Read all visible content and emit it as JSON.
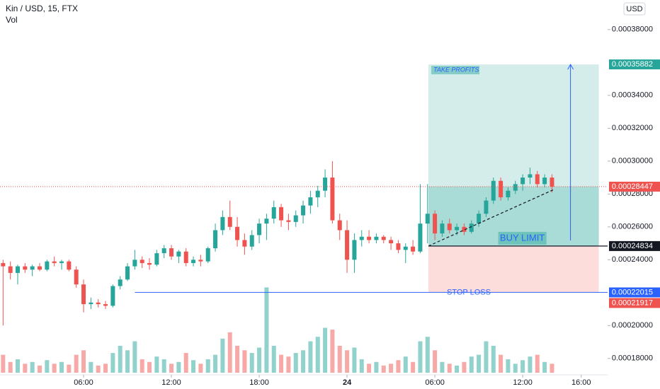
{
  "chart_data": {
    "type": "candlestick",
    "title": "Kin / USD, 15, FTX",
    "volume_label": "Vol",
    "currency": "USD",
    "up_color": "#26a69a",
    "down_color": "#ef5350",
    "xlim": [
      0.29,
      41.8
    ],
    "xticks": [
      {
        "value": 6,
        "label": "06:00"
      },
      {
        "value": 12,
        "label": "12:00"
      },
      {
        "value": 18,
        "label": "18:00"
      },
      24,
      {
        "value": 30,
        "label": "06:00"
      },
      {
        "value": 36,
        "label": "12:00"
      },
      {
        "value": 40,
        "label": "16:00"
      }
    ],
    "ylim": [
      0.00017,
      0.000398
    ],
    "yticks": [
      {
        "value": 0.00018,
        "label": "0.00018000"
      },
      {
        "value": 0.0002,
        "label": "0.00020000"
      },
      {
        "value": 0.00024,
        "label": "0.00024000"
      },
      {
        "value": 0.00026,
        "label": "0.00026000"
      },
      {
        "value": 0.00028,
        "label": "0.00028000"
      },
      {
        "value": 0.0003,
        "label": "0.00030000"
      },
      {
        "value": 0.00032,
        "label": "0.00032000"
      },
      {
        "value": 0.00034,
        "label": "0.00034000"
      },
      {
        "value": 0.00038,
        "label": "0.00038000"
      }
    ],
    "vlim": [
      0,
      100
    ],
    "x": [
      0.5,
      1,
      1.5,
      2,
      2.5,
      3,
      3.5,
      4,
      4.5,
      5,
      5.5,
      6,
      6.5,
      7,
      7.5,
      8,
      8.5,
      9,
      9.5,
      10,
      10.5,
      11,
      11.5,
      12,
      12.5,
      13,
      13.5,
      14,
      14.5,
      15,
      15.5,
      16,
      16.5,
      17,
      17.5,
      18,
      18.5,
      19,
      19.5,
      20,
      20.5,
      21,
      21.5,
      22,
      22.5,
      23,
      23.5,
      24,
      24.5,
      25,
      25.5,
      26,
      26.5,
      27,
      27.5,
      28,
      28.5,
      29,
      29.5,
      30,
      30.5,
      31,
      31.5,
      32,
      32.5,
      33,
      33.5,
      34,
      34.5,
      35,
      35.5,
      36,
      36.5,
      37,
      37.5,
      38
    ],
    "open": [
      0.000238,
      0.000236,
      0.000232,
      0.000236,
      0.000234,
      0.000236,
      0.000234,
      0.000239,
      0.000238,
      0.000239,
      0.000234,
      0.000225,
      0.000213,
      0.000214,
      0.000213,
      0.000212,
      0.000224,
      0.000228,
      0.000236,
      0.00024,
      0.000238,
      0.000237,
      0.000244,
      0.000247,
      0.000242,
      0.000245,
      0.000238,
      0.00024,
      0.000239,
      0.000247,
      0.000258,
      0.000266,
      0.00026,
      0.000252,
      0.000248,
      0.000255,
      0.000262,
      0.000265,
      0.000272,
      0.000264,
      0.000263,
      0.000267,
      0.000273,
      0.000278,
      0.000282,
      0.00029,
      0.000264,
      0.000258,
      0.00024,
      0.000252,
      0.000254,
      0.000252,
      0.000254,
      0.000252,
      0.00025,
      0.000246,
      0.000248,
      0.000245,
      0.000262,
      0.000268,
      0.000256,
      0.000262,
      0.000258,
      0.00026,
      0.000257,
      0.000262,
      0.000268,
      0.000276,
      0.000288,
      0.000278,
      0.000282,
      0.000286,
      0.00029,
      0.000292,
      0.000286,
      0.00029
    ],
    "high": [
      0.00024,
      0.000239,
      0.000237,
      0.000238,
      0.000237,
      0.000238,
      0.00024,
      0.000242,
      0.00024,
      0.00024,
      0.000236,
      0.000228,
      0.000217,
      0.000216,
      0.000215,
      0.000225,
      0.00023,
      0.000238,
      0.000246,
      0.000242,
      0.000241,
      0.000246,
      0.000249,
      0.000249,
      0.000246,
      0.000247,
      0.000242,
      0.000243,
      0.000248,
      0.000262,
      0.00027,
      0.000276,
      0.000266,
      0.000256,
      0.000258,
      0.000265,
      0.000268,
      0.000276,
      0.000274,
      0.000268,
      0.00027,
      0.000276,
      0.000282,
      0.000285,
      0.000295,
      0.0003,
      0.000268,
      0.000264,
      0.000256,
      0.000258,
      0.000258,
      0.000256,
      0.000255,
      0.000254,
      0.000252,
      0.00025,
      0.000252,
      0.000286,
      0.000286,
      0.00027,
      0.000264,
      0.000265,
      0.000262,
      0.000262,
      0.000264,
      0.00027,
      0.000278,
      0.00029,
      0.00029,
      0.000284,
      0.000288,
      0.000292,
      0.000296,
      0.000294,
      0.000292,
      0.000292
    ],
    "low": [
      0.0002,
      0.000228,
      0.000225,
      0.000232,
      0.00023,
      0.000233,
      0.000233,
      0.000236,
      0.000234,
      0.000233,
      0.000223,
      0.000208,
      0.00021,
      0.000211,
      0.00021,
      0.000211,
      0.000222,
      0.000227,
      0.000234,
      0.000235,
      0.000234,
      0.000236,
      0.000241,
      0.00024,
      0.000238,
      0.000236,
      0.000236,
      0.000236,
      0.000238,
      0.000245,
      0.000255,
      0.000258,
      0.000248,
      0.000243,
      0.000246,
      0.00025,
      0.000252,
      0.000262,
      0.00026,
      0.000258,
      0.00026,
      0.000262,
      0.000268,
      0.000272,
      0.000278,
      0.000262,
      0.000252,
      0.000232,
      0.000232,
      0.000248,
      0.00025,
      0.00025,
      0.00025,
      0.000246,
      0.000244,
      0.000238,
      0.000243,
      0.000244,
      0.00025,
      0.000252,
      0.000254,
      0.000256,
      0.000255,
      0.000255,
      0.000256,
      0.00026,
      0.000266,
      0.000274,
      0.000276,
      0.000276,
      0.00028,
      0.000282,
      0.000286,
      0.000284,
      0.000284,
      0.000281
    ],
    "close": [
      0.000236,
      0.000232,
      0.000236,
      0.000234,
      0.000236,
      0.000234,
      0.000239,
      0.000238,
      0.000239,
      0.000234,
      0.000225,
      0.000213,
      0.000214,
      0.000213,
      0.000212,
      0.000224,
      0.000228,
      0.000236,
      0.00024,
      0.000238,
      0.000237,
      0.000244,
      0.000247,
      0.000242,
      0.000245,
      0.000238,
      0.00024,
      0.000239,
      0.000247,
      0.000258,
      0.000266,
      0.00026,
      0.000252,
      0.000248,
      0.000255,
      0.000262,
      0.000265,
      0.000272,
      0.000264,
      0.000263,
      0.000267,
      0.000273,
      0.000278,
      0.000282,
      0.00029,
      0.000264,
      0.000258,
      0.00024,
      0.000252,
      0.000254,
      0.000252,
      0.000254,
      0.000252,
      0.00025,
      0.000246,
      0.000248,
      0.000245,
      0.000262,
      0.000268,
      0.000256,
      0.000262,
      0.000258,
      0.00026,
      0.000257,
      0.000262,
      0.000268,
      0.000276,
      0.000288,
      0.000278,
      0.000282,
      0.000286,
      0.00029,
      0.000292,
      0.000286,
      0.00029,
      0.00028447
    ],
    "volume": [
      20,
      12,
      15,
      10,
      12,
      8,
      14,
      10,
      12,
      9,
      20,
      25,
      12,
      8,
      10,
      22,
      30,
      25,
      35,
      15,
      12,
      18,
      15,
      10,
      12,
      22,
      14,
      10,
      15,
      20,
      38,
      45,
      30,
      25,
      22,
      28,
      95,
      30,
      20,
      18,
      22,
      25,
      35,
      40,
      50,
      48,
      30,
      25,
      28,
      15,
      10,
      12,
      8,
      10,
      14,
      18,
      12,
      35,
      40,
      25,
      12,
      10,
      8,
      12,
      18,
      20,
      35,
      30,
      20,
      15,
      10,
      14,
      18,
      20,
      12,
      10
    ],
    "position": {
      "start_x": 29.56,
      "end_x": 41.2,
      "target": 0.00035882,
      "entry": 0.00024834,
      "stop": 0.00022015,
      "lower_tag": 0.00021917,
      "stop_line_start": 9.5,
      "target_label": "TAKE PROFITS",
      "entry_label": "BUY LIMIT",
      "stop_label": "STOP LOSS"
    },
    "trend_line": {
      "x": [
        29.56,
        38.2
      ],
      "y": [
        0.00024834,
        0.000283
      ]
    }
  }
}
